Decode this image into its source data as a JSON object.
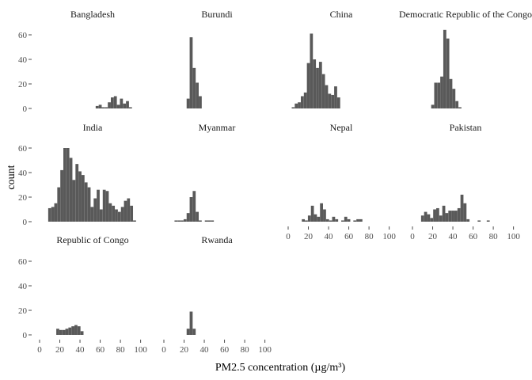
{
  "chart_data": {
    "type": "bar",
    "layout": "facet-wrap 4 columns",
    "xlabel": "PM2.5 concentration (µg/m³)",
    "ylabel": "count",
    "xlim": [
      0,
      105
    ],
    "ylim": [
      0,
      65
    ],
    "x_ticks": [
      0,
      20,
      40,
      60,
      80,
      100
    ],
    "y_ticks": [
      0,
      20,
      40,
      60
    ],
    "bin_width": 3.6,
    "bar_color": "#595959",
    "grid": false,
    "facets": [
      {
        "name": "Bangladesh",
        "bins": [
          [
            57,
            2
          ],
          [
            60,
            3
          ],
          [
            63,
            1
          ],
          [
            66,
            1
          ],
          [
            69,
            5
          ],
          [
            72,
            9
          ],
          [
            75,
            10
          ],
          [
            78,
            3
          ],
          [
            81,
            8
          ],
          [
            84,
            4
          ],
          [
            87,
            6
          ],
          [
            90,
            1
          ]
        ]
      },
      {
        "name": "Burundi",
        "bins": [
          [
            24,
            8
          ],
          [
            27,
            58
          ],
          [
            30,
            33
          ],
          [
            33,
            21
          ],
          [
            36,
            10
          ]
        ]
      },
      {
        "name": "China",
        "bins": [
          [
            5,
            1
          ],
          [
            8,
            4
          ],
          [
            11,
            5
          ],
          [
            14,
            10
          ],
          [
            17,
            13
          ],
          [
            20,
            37
          ],
          [
            23,
            61
          ],
          [
            26,
            40
          ],
          [
            29,
            33
          ],
          [
            32,
            38
          ],
          [
            35,
            28
          ],
          [
            38,
            19
          ],
          [
            41,
            12
          ],
          [
            44,
            11
          ],
          [
            47,
            18
          ],
          [
            50,
            9
          ]
        ]
      },
      {
        "name": "Democratic Republic of the Congo",
        "bins": [
          [
            20,
            3
          ],
          [
            23,
            21
          ],
          [
            26,
            21
          ],
          [
            29,
            26
          ],
          [
            32,
            64
          ],
          [
            35,
            57
          ],
          [
            38,
            24
          ],
          [
            41,
            16
          ],
          [
            44,
            6
          ],
          [
            47,
            1
          ]
        ]
      },
      {
        "name": "India",
        "bins": [
          [
            10,
            11
          ],
          [
            13,
            12
          ],
          [
            16,
            15
          ],
          [
            19,
            28
          ],
          [
            22,
            42
          ],
          [
            25,
            60
          ],
          [
            28,
            60
          ],
          [
            31,
            52
          ],
          [
            34,
            34
          ],
          [
            37,
            47
          ],
          [
            40,
            41
          ],
          [
            43,
            38
          ],
          [
            46,
            32
          ],
          [
            49,
            28
          ],
          [
            52,
            12
          ],
          [
            55,
            19
          ],
          [
            58,
            26
          ],
          [
            61,
            10
          ],
          [
            64,
            26
          ],
          [
            67,
            25
          ],
          [
            70,
            15
          ],
          [
            73,
            13
          ],
          [
            76,
            10
          ],
          [
            79,
            8
          ],
          [
            82,
            12
          ],
          [
            85,
            17
          ],
          [
            88,
            19
          ],
          [
            91,
            13
          ],
          [
            94,
            1
          ]
        ]
      },
      {
        "name": "Myanmar",
        "bins": [
          [
            12,
            1
          ],
          [
            15,
            1
          ],
          [
            18,
            1
          ],
          [
            21,
            2
          ],
          [
            24,
            7
          ],
          [
            27,
            20
          ],
          [
            30,
            25
          ],
          [
            33,
            8
          ],
          [
            36,
            1
          ],
          [
            42,
            1
          ],
          [
            45,
            1
          ],
          [
            48,
            1
          ]
        ]
      },
      {
        "name": "Nepal",
        "bins": [
          [
            15,
            2
          ],
          [
            18,
            1
          ],
          [
            21,
            5
          ],
          [
            24,
            13
          ],
          [
            27,
            6
          ],
          [
            30,
            4
          ],
          [
            33,
            15
          ],
          [
            36,
            10
          ],
          [
            39,
            2
          ],
          [
            42,
            1
          ],
          [
            45,
            4
          ],
          [
            48,
            2
          ],
          [
            54,
            1
          ],
          [
            57,
            4
          ],
          [
            60,
            2
          ],
          [
            66,
            1
          ],
          [
            69,
            2
          ],
          [
            72,
            2
          ]
        ]
      },
      {
        "name": "Pakistan",
        "bins": [
          [
            10,
            5
          ],
          [
            13,
            8
          ],
          [
            16,
            6
          ],
          [
            19,
            3
          ],
          [
            22,
            10
          ],
          [
            25,
            11
          ],
          [
            28,
            5
          ],
          [
            31,
            13
          ],
          [
            34,
            7
          ],
          [
            37,
            9
          ],
          [
            40,
            9
          ],
          [
            43,
            9
          ],
          [
            46,
            11
          ],
          [
            49,
            22
          ],
          [
            52,
            15
          ],
          [
            55,
            2
          ],
          [
            66,
            1
          ],
          [
            75,
            1
          ]
        ]
      },
      {
        "name": "Republic of Congo",
        "bins": [
          [
            18,
            5
          ],
          [
            21,
            4
          ],
          [
            24,
            4
          ],
          [
            27,
            5
          ],
          [
            30,
            6
          ],
          [
            33,
            7
          ],
          [
            36,
            8
          ],
          [
            39,
            7
          ],
          [
            42,
            3
          ]
        ]
      },
      {
        "name": "Rwanda",
        "bins": [
          [
            24,
            5
          ],
          [
            27,
            19
          ],
          [
            30,
            5
          ]
        ]
      }
    ]
  }
}
